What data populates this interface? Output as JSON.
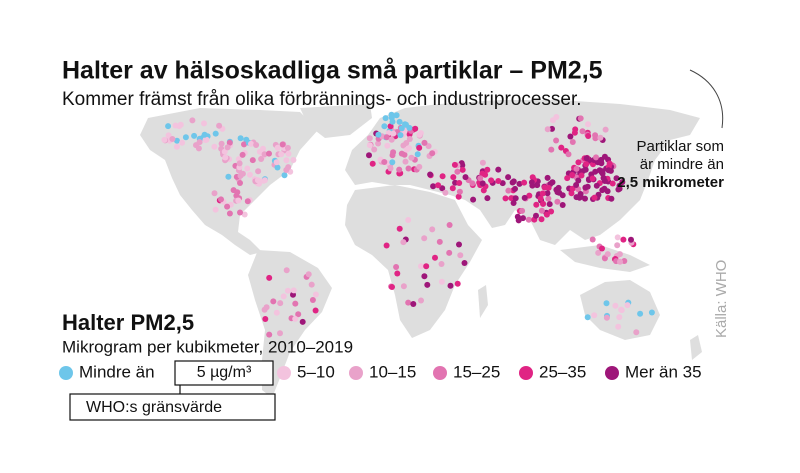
{
  "header": {
    "title": "Halter av hälsoskadliga små partiklar – PM2,5",
    "subtitle": "Kommer främst från olika förbrännings- och industriprocesser."
  },
  "annotation": {
    "lines": [
      "Partiklar som",
      "är mindre än",
      "2,5 mikrometer"
    ]
  },
  "source": "Källa: WHO",
  "legend": {
    "title": "Halter PM2,5",
    "subtitle": "Mikrogram per kubikmeter, 2010–2019",
    "items": [
      {
        "label": "Mindre än",
        "color": "#6ec6ea"
      },
      {
        "label": "5–10",
        "color": "#f3c3de"
      },
      {
        "label": "10–15",
        "color": "#e9a2ca"
      },
      {
        "label": "15–25",
        "color": "#e274b1"
      },
      {
        "label": "25–35",
        "color": "#e02484"
      },
      {
        "label": "Mer än 35",
        "color": "#9e1679"
      }
    ],
    "limit_value": "5 µg/m³",
    "limit_label": "WHO:s gränsvärde"
  }
}
